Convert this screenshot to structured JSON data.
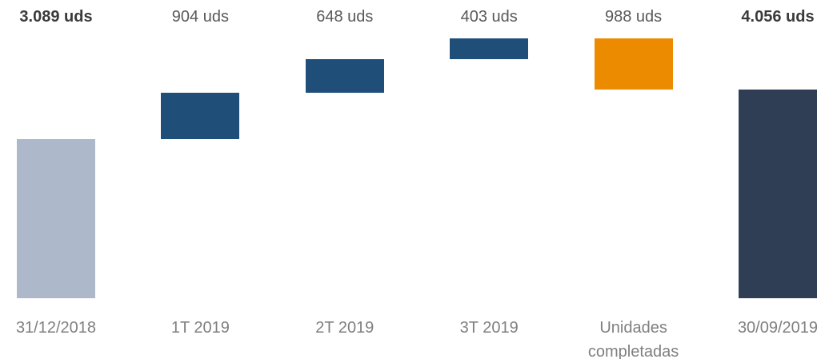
{
  "chart_data": {
    "type": "waterfall",
    "categories": [
      "31/12/2018",
      "1T 2019",
      "2T 2019",
      "3T 2019",
      "Unidades completadas",
      "30/09/2019"
    ],
    "values": [
      3089,
      904,
      648,
      403,
      -988,
      4056
    ],
    "value_labels": [
      "3.089 uds",
      "904 uds",
      "648 uds",
      "403 uds",
      "988 uds",
      "4.056 uds"
    ],
    "bar_types": [
      "total",
      "delta",
      "delta",
      "delta",
      "delta",
      "total"
    ],
    "colors": [
      "#adb9ca",
      "#1f4e79",
      "#1f4e79",
      "#1f4e79",
      "#ed8b00",
      "#2f3e55"
    ]
  }
}
